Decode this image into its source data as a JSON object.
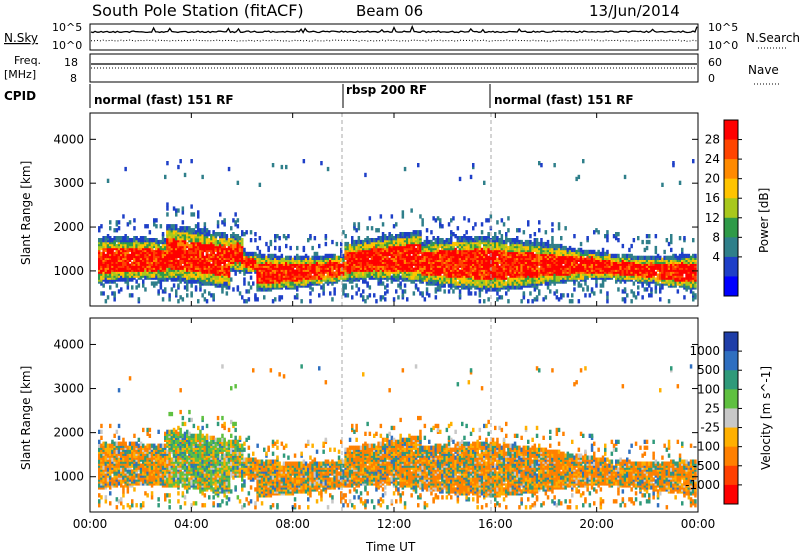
{
  "header": {
    "title": "South Pole Station (fitACF)",
    "beam": "Beam 06",
    "date": "13/Jun/2014"
  },
  "noise_panel": {
    "left_label": "N.Sky",
    "right_label": "N.Search",
    "left_ticks": [
      "10^5",
      "10^0"
    ],
    "right_ticks": [
      "10^5",
      "10^0"
    ]
  },
  "freq_panel": {
    "left_label_1": "Freq.",
    "left_label_2": "[MHz]",
    "right_label": "Nave",
    "left_ticks": [
      "18",
      "8"
    ],
    "right_ticks": [
      "60",
      "0"
    ]
  },
  "cpid": {
    "label": "CPID",
    "segments": [
      {
        "text": "normal (fast) 151 RF",
        "start_hour": 0
      },
      {
        "text": "rbsp 200 RF",
        "start_hour": 10
      },
      {
        "text": "normal (fast) 151 RF",
        "start_hour": 16
      }
    ]
  },
  "chart_data": [
    {
      "type": "heatmap",
      "panel": "power",
      "ylabel": "Slant Range [km]",
      "yticks": [
        1000,
        2000,
        3000,
        4000
      ],
      "ylim": [
        200,
        4600
      ],
      "xlim_hours": [
        0,
        24
      ],
      "colorbar": {
        "label": "Power [dB]",
        "ticks": [
          "28",
          "24",
          "20",
          "16",
          "12",
          "8",
          "4"
        ],
        "colors": [
          "#ff0000",
          "#ff4400",
          "#ff8a00",
          "#ffc400",
          "#a8c81c",
          "#2f9a48",
          "#2f7f8a",
          "#1e3fc8",
          "#0000ff"
        ]
      },
      "description_bands": [
        {
          "hours": [
            0.5,
            10
          ],
          "range_km": [
            600,
            1600
          ],
          "level": "high"
        },
        {
          "hours": [
            10,
            16
          ],
          "range_km": [
            700,
            1700
          ],
          "level": "medium"
        },
        {
          "hours": [
            16,
            24
          ],
          "range_km": [
            600,
            1700
          ],
          "level": "high"
        }
      ]
    },
    {
      "type": "heatmap",
      "panel": "velocity",
      "ylabel": "Slant Range [km]",
      "yticks": [
        1000,
        2000,
        3000,
        4000
      ],
      "ylim": [
        200,
        4600
      ],
      "xlim_hours": [
        0,
        24
      ],
      "colorbar": {
        "label": "Velocity [m s^-1]",
        "ticks": [
          "1000",
          "500",
          "100",
          "25",
          "-25",
          "-100",
          "-500",
          "-1000"
        ],
        "colors": [
          "#1f3ea8",
          "#2f6fc0",
          "#2f9a7a",
          "#5fc040",
          "#c8c8c8",
          "#ffb000",
          "#ff8000",
          "#ff4000",
          "#ff0000"
        ]
      }
    }
  ],
  "x_axis": {
    "ticks": [
      "00:00",
      "04:00",
      "08:00",
      "12:00",
      "16:00",
      "20:00",
      "00:00"
    ],
    "label": "Time UT"
  }
}
